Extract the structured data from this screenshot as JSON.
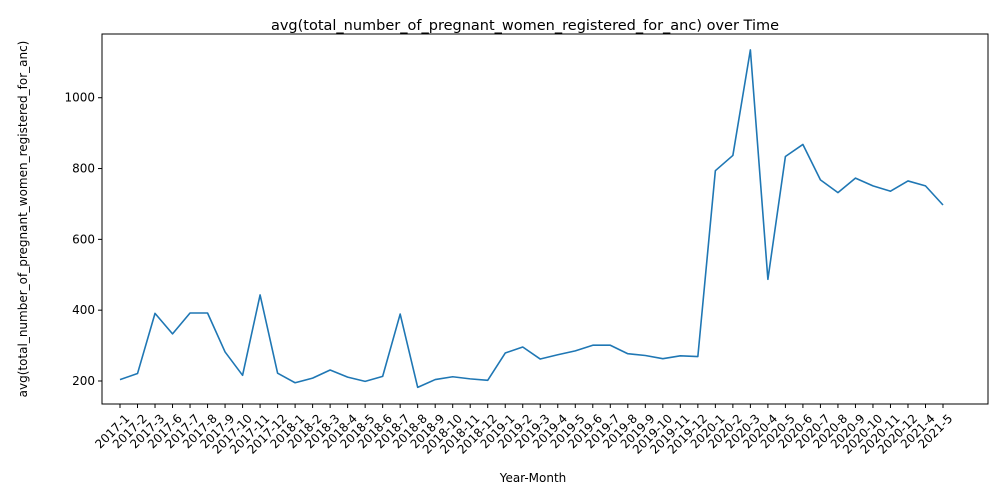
{
  "chart_data": {
    "type": "line",
    "title": "avg(total_number_of_pregnant_women_registered_for_anc) over Time",
    "xlabel": "Year-Month",
    "ylabel": "avg(total_number_of_pregnant_women_registered_for_anc)",
    "ylim": [
      135,
      1180
    ],
    "yticks": [
      200,
      400,
      600,
      800,
      1000
    ],
    "grid": false,
    "series_color": "#1f77b4",
    "categories": [
      "2017-1",
      "2017-2",
      "2017-3",
      "2017-6",
      "2017-7",
      "2017-8",
      "2017-9",
      "2017-10",
      "2017-11",
      "2017-12",
      "2018-1",
      "2018-2",
      "2018-3",
      "2018-4",
      "2018-5",
      "2018-6",
      "2018-7",
      "2018-8",
      "2018-9",
      "2018-10",
      "2018-11",
      "2018-12",
      "2019-1",
      "2019-2",
      "2019-3",
      "2019-4",
      "2019-5",
      "2019-6",
      "2019-7",
      "2019-8",
      "2019-9",
      "2019-10",
      "2019-11",
      "2019-12",
      "2020-1",
      "2020-2",
      "2020-3",
      "2020-4",
      "2020-5",
      "2020-6",
      "2020-7",
      "2020-8",
      "2020-9",
      "2020-10",
      "2020-11",
      "2020-12",
      "2021-4",
      "2021-5"
    ],
    "series": [
      {
        "values": [
          204,
          221,
          391,
          333,
          392,
          392,
          282,
          216,
          443,
          222,
          195,
          208,
          231,
          211,
          199,
          213,
          389,
          182,
          204,
          212,
          206,
          202,
          279,
          296,
          262,
          274,
          285,
          301,
          301,
          277,
          272,
          263,
          271,
          269,
          794,
          837,
          1135,
          487,
          834,
          868,
          768,
          732,
          773,
          751,
          736,
          765,
          751,
          697
        ]
      }
    ]
  }
}
